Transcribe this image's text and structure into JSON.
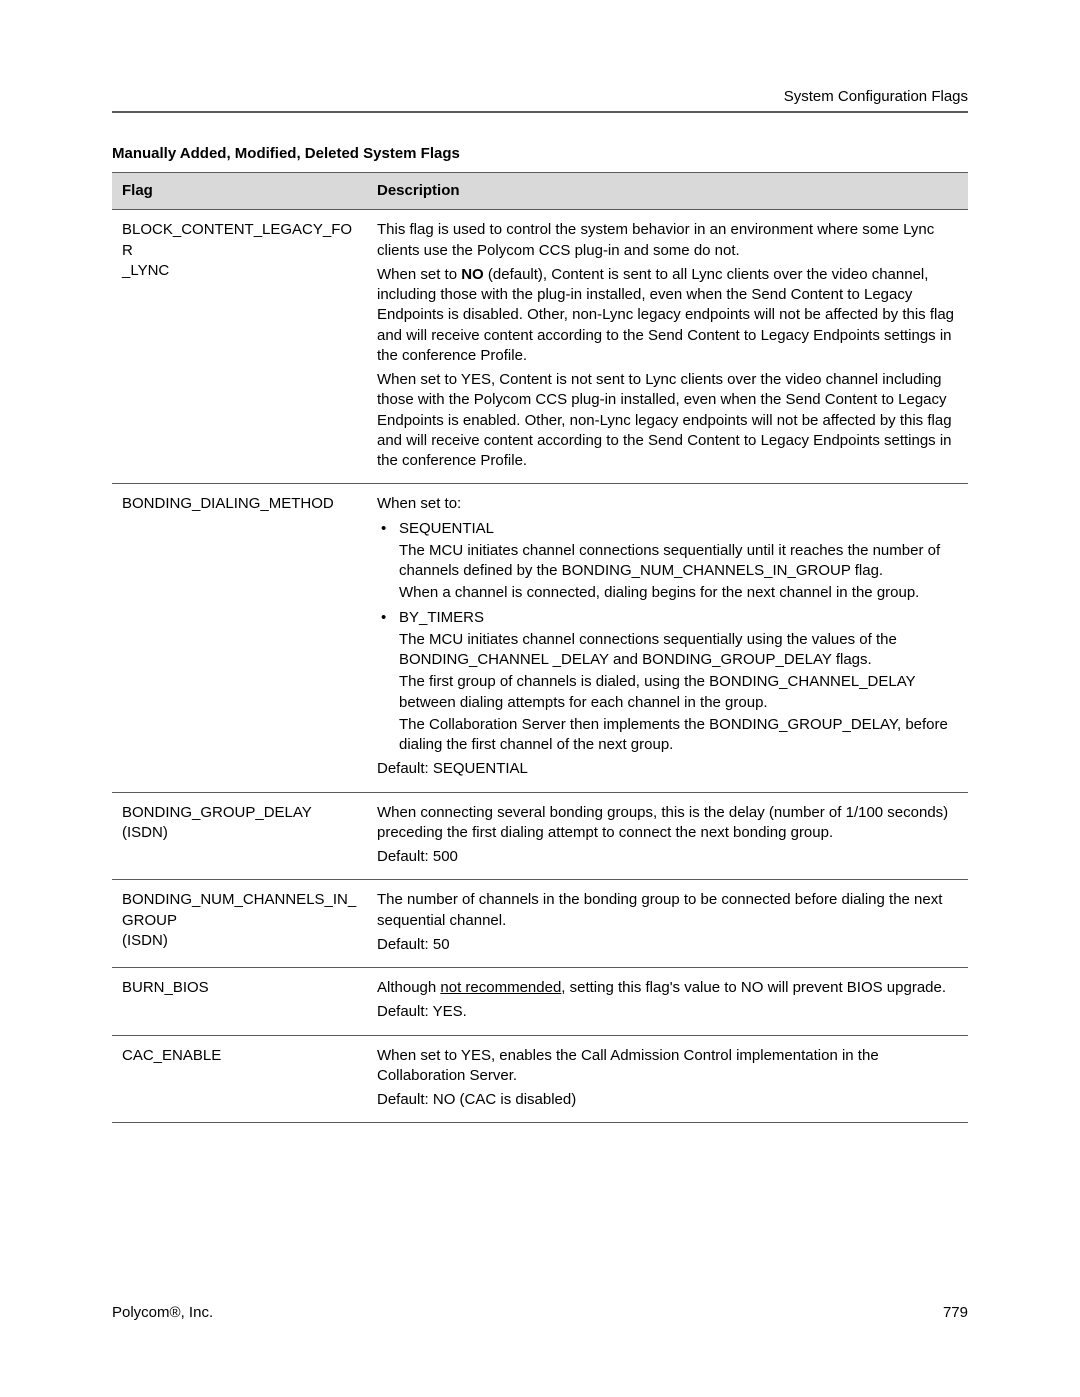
{
  "header": {
    "section": "System Configuration Flags"
  },
  "table": {
    "title": "Manually Added, Modified, Deleted System Flags",
    "columns": {
      "flag": "Flag",
      "description": "Description"
    },
    "rows": {
      "r0": {
        "flag_line1": "BLOCK_CONTENT_LEGACY_FOR",
        "flag_line2": "_LYNC",
        "p1a": "This flag is used to control the system behavior in an environment where some Lync clients use the Polycom CCS plug-in and some do not.",
        "p2_pre": "When set to ",
        "p2_bold": "NO",
        "p2_post": " (default), Content is sent to all Lync clients over the video channel, including those with the plug-in installed, even when the Send Content to Legacy Endpoints is disabled. Other, non-Lync legacy endpoints will not be affected by this flag and will receive content according to the Send Content to Legacy Endpoints settings in the conference Profile.",
        "p3": "When set to YES, Content is not sent to Lync clients over the video channel including those with the Polycom CCS plug-in installed, even when the Send Content to Legacy Endpoints is enabled. Other, non-Lync legacy endpoints will not be affected by this flag and will receive content according to the Send Content to Legacy Endpoints settings in the conference Profile."
      },
      "r1": {
        "flag": "BONDING_DIALING_METHOD",
        "intro": "When set to:",
        "b1_title": "SEQUENTIAL",
        "b1_p1": "The MCU initiates channel connections sequentially until it reaches the number of channels defined by the BONDING_NUM_CHANNELS_IN_GROUP flag.",
        "b1_p2": "When a channel is connected, dialing begins for the next channel in the group.",
        "b2_title": "BY_TIMERS",
        "b2_p1": "The MCU initiates channel connections sequentially using the values of the BONDING_CHANNEL _DELAY and BONDING_GROUP_DELAY flags.",
        "b2_p2": "The first group of channels is dialed, using the BONDING_CHANNEL_DELAY between dialing attempts for each channel in the group.",
        "b2_p3": "The Collaboration Server then implements the BONDING_GROUP_DELAY, before dialing the first channel of the next group.",
        "def": "Default: SEQUENTIAL"
      },
      "r2": {
        "flag_line1": "BONDING_GROUP_DELAY",
        "flag_line2": "(ISDN)",
        "p1": "When connecting several bonding groups, this is the delay (number of 1/100 seconds) preceding the first dialing attempt to connect the next bonding group.",
        "def": "Default: 500"
      },
      "r3": {
        "flag_line1": "BONDING_NUM_CHANNELS_IN_",
        "flag_line2": "GROUP",
        "flag_line3": "(ISDN)",
        "p1": "The number of channels in the bonding group to be connected before dialing the next sequential channel.",
        "def": "Default: 50"
      },
      "r4": {
        "flag": "BURN_BIOS",
        "p1_pre": "Although ",
        "p1_u": "not recommended",
        "p1_post": ", setting this flag's value to NO will prevent BIOS upgrade.",
        "def": "Default: YES."
      },
      "r5": {
        "flag": "CAC_ENABLE",
        "p1": "When set to YES, enables the Call Admission Control implementation in the Collaboration Server.",
        "def": "Default: NO (CAC is disabled)"
      }
    }
  },
  "footer": {
    "left_pre": "Polycom",
    "left_reg": "®",
    "left_post": ", Inc.",
    "page": "779"
  }
}
